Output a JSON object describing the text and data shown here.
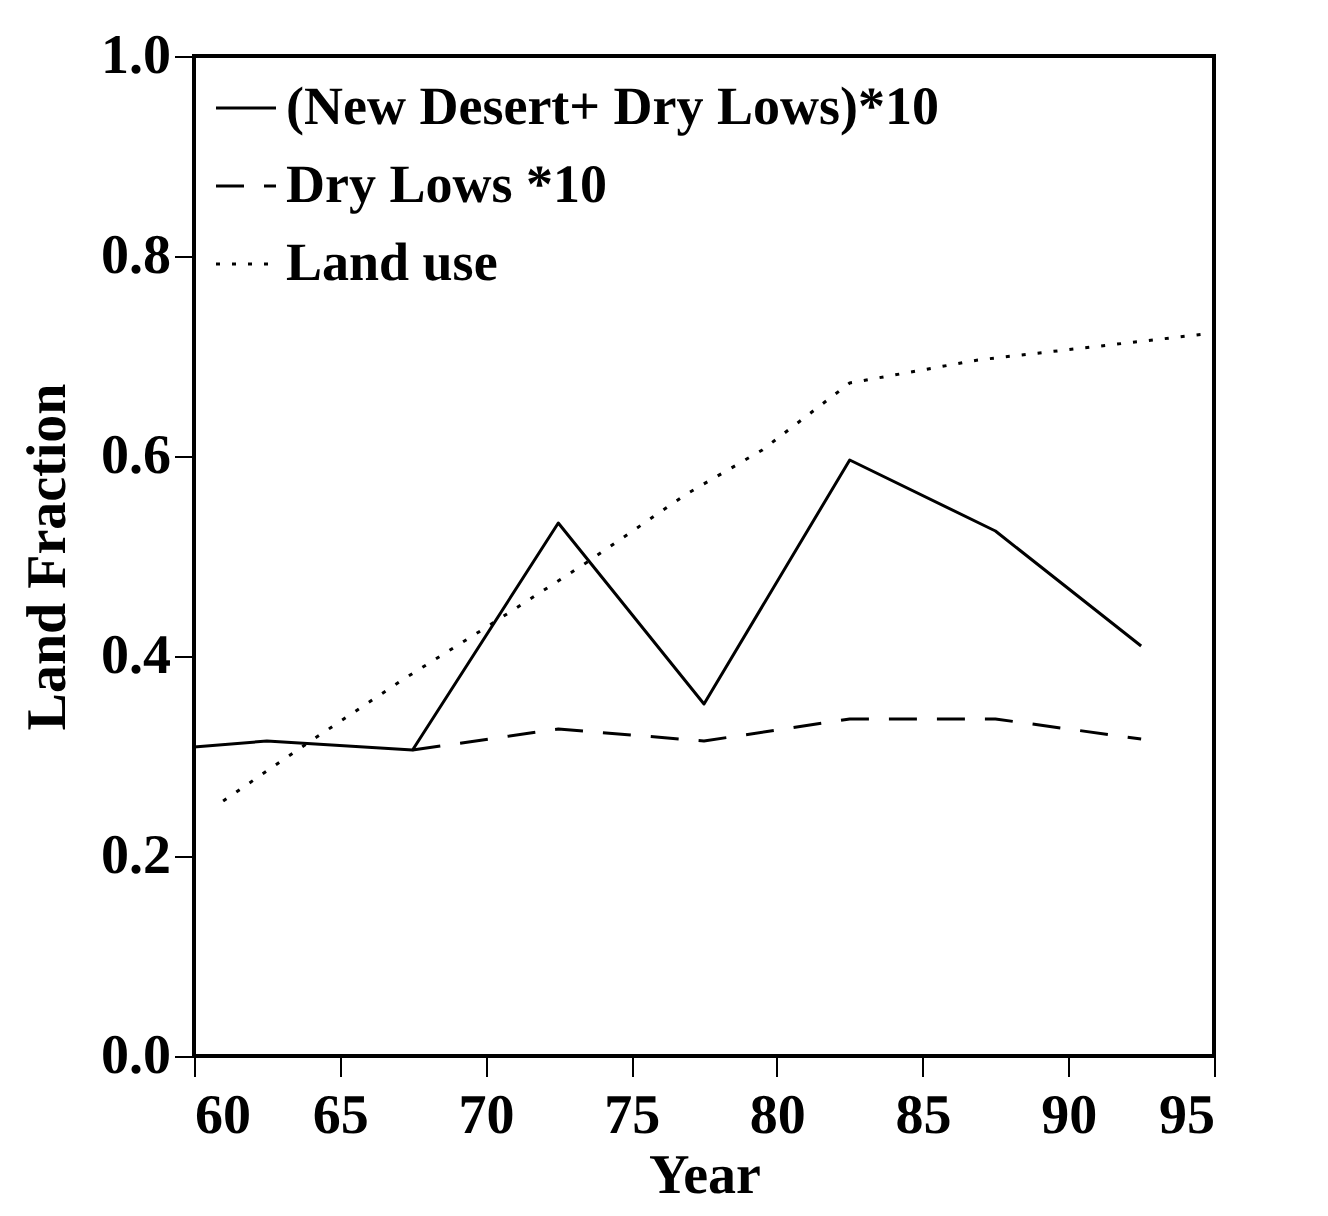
{
  "chart_data": {
    "type": "line",
    "xlabel": "Year",
    "ylabel": "Land Fraction",
    "xlim": [
      60,
      95
    ],
    "xticks": [
      60,
      65,
      70,
      75,
      80,
      85,
      90,
      95
    ],
    "ylim": [
      0,
      1
    ],
    "yticks": [
      {
        "value": 0,
        "label": "0.0"
      },
      {
        "value": 0.2,
        "label": "0.2"
      },
      {
        "value": 0.4,
        "label": "0.4"
      },
      {
        "value": 0.6,
        "label": "0.6"
      },
      {
        "value": 0.8,
        "label": "0.8"
      },
      {
        "value": 1,
        "label": "1.0"
      }
    ],
    "grid": false,
    "legend": "top left",
    "series": [
      {
        "name": "(New Desert+ Dry Lows)*10",
        "color": "#000000",
        "line_style": "solid",
        "x": [
          60,
          62.5,
          67.5,
          72.5,
          77.5,
          82.5,
          87.5,
          92.5
        ],
        "values": [
          0.309,
          0.315,
          0.306,
          0.533,
          0.352,
          0.596,
          0.525,
          0.41
        ]
      },
      {
        "name": "Dry Lows *10",
        "color": "#000000",
        "line_style": "dashed",
        "x": [
          67.5,
          72.5,
          77.5,
          82.5,
          87.5,
          92.5
        ],
        "values": [
          0.306,
          0.327,
          0.315,
          0.337,
          0.337,
          0.317
        ]
      },
      {
        "name": "Land use",
        "color": "#000000",
        "line_style": "dotted",
        "x": [
          61,
          63.9,
          67.2,
          70.1,
          73.5,
          76.9,
          79.5,
          82.5,
          86.9,
          95
        ],
        "values": [
          0.255,
          0.313,
          0.377,
          0.43,
          0.494,
          0.562,
          0.606,
          0.673,
          0.696,
          0.723
        ]
      }
    ]
  }
}
